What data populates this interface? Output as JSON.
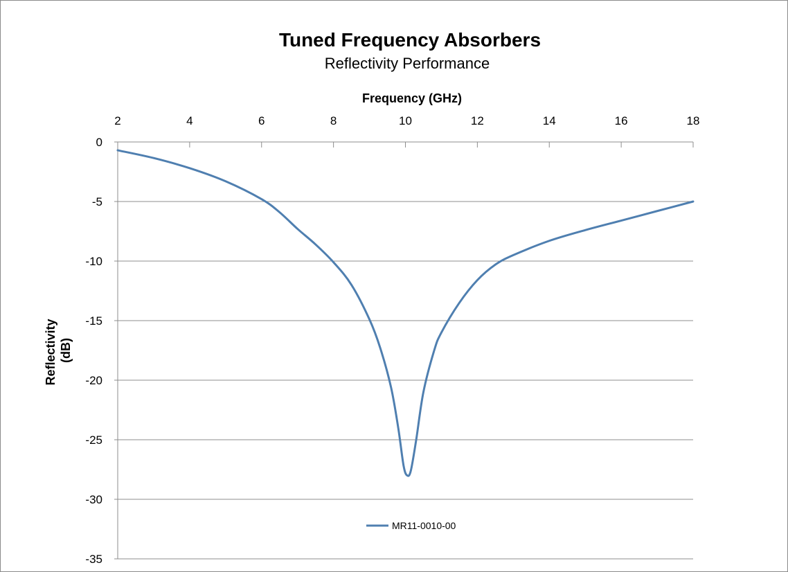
{
  "chart_data": {
    "type": "line",
    "title": "Tuned Frequency Absorbers",
    "subtitle": "Reflectivity Performance",
    "xlabel": "Frequency (GHz)",
    "ylabel_lines": [
      "Reflectivity",
      "(dB)"
    ],
    "xlim": [
      2,
      18
    ],
    "ylim": [
      -35,
      0
    ],
    "x_axis_position": "top",
    "x_ticks": [
      2,
      4,
      6,
      8,
      10,
      12,
      14,
      16,
      18
    ],
    "y_ticks": [
      0,
      -5,
      -10,
      -15,
      -20,
      -25,
      -30,
      -35
    ],
    "x_tick_labels": [
      "2",
      "4",
      "6",
      "8",
      "10",
      "12",
      "14",
      "16",
      "18"
    ],
    "y_tick_labels": [
      "0",
      "-5",
      "-10",
      "-15",
      "-20",
      "-25",
      "-30",
      "-35"
    ],
    "grid": "horizontal",
    "legend_position": "bottom-center",
    "series": [
      {
        "name": "MR11-0010-00",
        "color": "#4f7fb0",
        "x": [
          2,
          3,
          4,
          5,
          6,
          6.5,
          7,
          7.5,
          8,
          8.5,
          9,
          9.3,
          9.6,
          9.8,
          9.95,
          10.05,
          10.15,
          10.3,
          10.5,
          10.8,
          11,
          11.5,
          12,
          12.5,
          13,
          14,
          15,
          16,
          17,
          18
        ],
        "y": [
          -0.7,
          -1.35,
          -2.2,
          -3.3,
          -4.8,
          -5.9,
          -7.3,
          -8.6,
          -10.1,
          -12.0,
          -14.9,
          -17.3,
          -20.6,
          -24.0,
          -27.2,
          -28.0,
          -27.6,
          -25.0,
          -21.0,
          -17.5,
          -16.0,
          -13.5,
          -11.6,
          -10.3,
          -9.5,
          -8.3,
          -7.4,
          -6.6,
          -5.8,
          -5.0
        ]
      }
    ]
  }
}
